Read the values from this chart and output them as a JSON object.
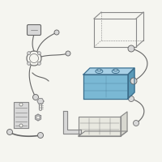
{
  "background_color": "#f5f5f0",
  "fig_size": [
    2.0,
    2.0
  ],
  "dpi": 100,
  "battery_color": "#7ab8d4",
  "battery_top_color": "#a8d0e6",
  "battery_right_color": "#5a9ab8",
  "battery_outline": "#3a6a88",
  "part_color": "#d8d8d8",
  "part_outline": "#888888",
  "line_color": "#666666",
  "bg": "#f5f5f0"
}
